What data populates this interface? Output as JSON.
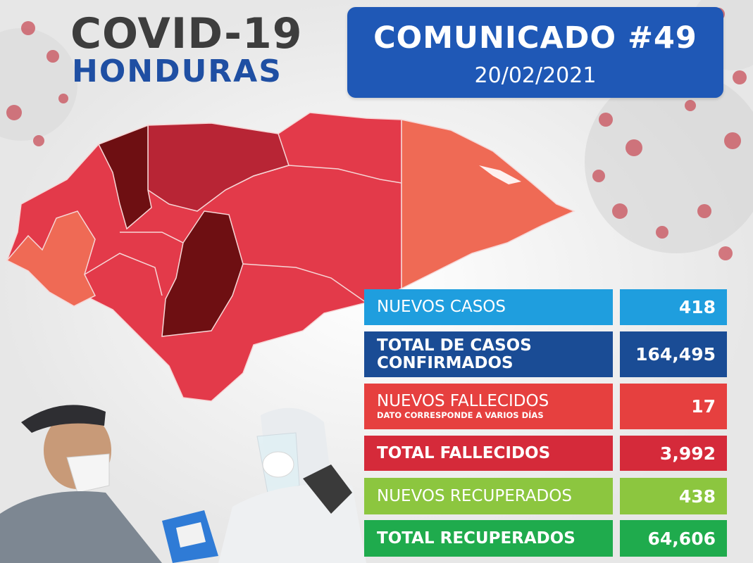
{
  "header": {
    "title": "COVID-19",
    "subtitle": "HONDURAS"
  },
  "comunicado": {
    "title": "COMUNICADO #49",
    "date": "20/02/2021"
  },
  "stats": [
    {
      "label": "NUEVOS CASOS",
      "value": "418",
      "color": "#1f9ede"
    },
    {
      "label": "TOTAL DE CASOS",
      "label2": "CONFIRMADOS",
      "value": "164,495",
      "color": "#1a4c95"
    },
    {
      "label": "NUEVOS FALLECIDOS",
      "note": "DATO CORRESPONDE A VARIOS DÍAS",
      "value": "17",
      "color": "#e6403f"
    },
    {
      "label": "TOTAL FALLECIDOS",
      "value": "3,992",
      "color": "#d52a3a"
    },
    {
      "label": "NUEVOS RECUPERADOS",
      "value": "438",
      "color": "#8cc63f"
    },
    {
      "label": "TOTAL RECUPERADOS",
      "value": "64,606",
      "color": "#1fab4d"
    }
  ],
  "colors": {
    "title_dark": "#3d3d3d",
    "title_blue": "#1f4fa3",
    "banner_blue": "#1f58b6",
    "map_dark": "#6e0f12",
    "map_mid": "#b82535",
    "map_red": "#e33a4a",
    "map_orange": "#ef6a55"
  },
  "icons": {
    "map": "honduras-map",
    "virus": "coronavirus-background",
    "photo": "health-workers-photo"
  }
}
